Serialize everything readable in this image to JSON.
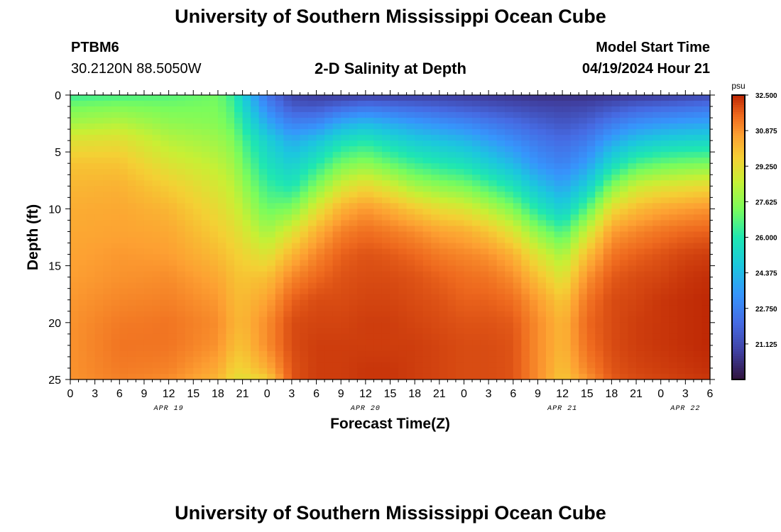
{
  "page": {
    "title_top": "University of Southern Mississippi Ocean Cube",
    "title_bottom": "University of Southern Mississippi Ocean Cube",
    "station_id": "PTBM6",
    "station_coords": "30.2120N  88.5050W",
    "plot_title": "2-D Salinity at Depth",
    "model_label": "Model Start Time",
    "model_time": "04/19/2024 Hour 21"
  },
  "chart_data": {
    "type": "heatmap",
    "title": "2-D Salinity at Depth",
    "xlabel": "Forecast Time(Z)",
    "ylabel": "Depth (ft)",
    "x_range_hours": [
      0,
      78
    ],
    "y_range_ft": [
      0,
      25
    ],
    "x_tick_hours": [
      0,
      3,
      6,
      9,
      12,
      15,
      18,
      21,
      24,
      27,
      30,
      33,
      36,
      39,
      42,
      45,
      48,
      51,
      54,
      57,
      60,
      63,
      66,
      69,
      72,
      75,
      78
    ],
    "x_tick_labels": [
      "0",
      "3",
      "6",
      "9",
      "12",
      "15",
      "18",
      "21",
      "0",
      "3",
      "6",
      "9",
      "12",
      "15",
      "18",
      "21",
      "0",
      "3",
      "6",
      "9",
      "12",
      "15",
      "18",
      "21",
      "0",
      "3",
      "6"
    ],
    "y_ticks": [
      0,
      5,
      10,
      15,
      20,
      25
    ],
    "date_labels": [
      {
        "text": "APR 19",
        "hour": 12
      },
      {
        "text": "APR 20",
        "hour": 36
      },
      {
        "text": "APR 21",
        "hour": 60
      },
      {
        "text": "APR 22",
        "hour": 75
      }
    ],
    "colorbar": {
      "unit": "psu",
      "min": 19.5,
      "max": 32.5,
      "tick_values": [
        32.5,
        30.875,
        29.25,
        27.625,
        26.0,
        24.375,
        22.75,
        21.125
      ],
      "tick_labels": [
        "32.500",
        "30.875",
        "29.250",
        "27.625",
        "26.000",
        "24.375",
        "22.750",
        "21.125"
      ]
    },
    "profiles": {
      "hours": [
        0,
        6,
        12,
        18,
        20,
        21,
        24,
        27,
        30,
        33,
        36,
        39,
        42,
        45,
        48,
        51,
        54,
        57,
        60,
        63,
        66,
        69,
        72,
        75,
        78
      ],
      "depth_knots_ft": [
        0,
        1,
        2.5,
        4,
        6,
        8,
        10,
        12,
        14,
        16,
        18,
        20,
        22,
        24,
        25
      ],
      "salinity_psu": [
        [
          26.4,
          27.2,
          28.0,
          29.1,
          29.9,
          30.2,
          30.4,
          30.5,
          30.6,
          30.7,
          30.8,
          30.9,
          30.9,
          30.9,
          30.9
        ],
        [
          26.6,
          27.4,
          28.3,
          29.2,
          29.9,
          30.3,
          30.5,
          30.6,
          30.8,
          30.9,
          31.1,
          31.3,
          31.4,
          31.3,
          31.2
        ],
        [
          26.8,
          27.2,
          27.7,
          28.3,
          29.0,
          29.7,
          30.2,
          30.5,
          30.7,
          31.0,
          31.2,
          31.4,
          31.4,
          31.2,
          31.0
        ],
        [
          27.2,
          27.3,
          27.5,
          27.9,
          28.4,
          28.9,
          29.3,
          29.7,
          30.1,
          30.5,
          30.8,
          31.0,
          30.9,
          30.5,
          30.2
        ],
        [
          26.2,
          26.5,
          26.9,
          27.4,
          27.9,
          28.4,
          28.8,
          29.3,
          29.7,
          30.0,
          30.2,
          30.3,
          30.1,
          29.6,
          29.3
        ],
        [
          25.0,
          25.4,
          26.0,
          26.6,
          27.2,
          27.8,
          28.4,
          29.0,
          29.5,
          29.9,
          30.1,
          30.2,
          30.0,
          29.6,
          29.2
        ],
        [
          22.4,
          23.0,
          24.0,
          25.1,
          25.7,
          26.4,
          27.1,
          28.0,
          29.0,
          30.0,
          30.6,
          31.0,
          31.0,
          30.4,
          29.6
        ],
        [
          21.0,
          21.6,
          22.8,
          24.0,
          25.0,
          25.9,
          27.4,
          29.0,
          30.2,
          31.1,
          31.7,
          32.0,
          32.0,
          31.9,
          31.9
        ],
        [
          20.7,
          21.5,
          23.0,
          24.6,
          26.0,
          27.4,
          29.0,
          30.3,
          31.1,
          31.6,
          32.0,
          32.1,
          32.2,
          32.2,
          32.2
        ],
        [
          20.7,
          22.0,
          24.0,
          25.6,
          27.2,
          28.8,
          30.3,
          31.2,
          31.7,
          31.9,
          32.0,
          32.1,
          32.2,
          32.2,
          32.2
        ],
        [
          20.8,
          22.4,
          24.4,
          26.0,
          27.6,
          29.4,
          30.8,
          31.5,
          31.9,
          32.0,
          32.1,
          32.2,
          32.2,
          32.3,
          32.3
        ],
        [
          20.8,
          22.2,
          24.0,
          25.4,
          27.0,
          28.8,
          30.4,
          31.3,
          31.8,
          32.0,
          32.1,
          32.2,
          32.2,
          32.3,
          32.3
        ],
        [
          20.8,
          22.0,
          23.6,
          24.9,
          26.4,
          28.0,
          29.8,
          31.0,
          31.6,
          31.9,
          32.0,
          32.1,
          32.2,
          32.2,
          32.2
        ],
        [
          20.8,
          21.8,
          23.3,
          24.6,
          26.0,
          27.6,
          29.3,
          30.6,
          31.3,
          31.7,
          31.9,
          32.0,
          32.1,
          32.1,
          32.1
        ],
        [
          20.7,
          21.6,
          23.0,
          24.3,
          25.7,
          27.3,
          29.0,
          30.4,
          31.1,
          31.5,
          31.7,
          31.9,
          32.0,
          32.0,
          32.0
        ],
        [
          20.6,
          21.4,
          22.6,
          23.7,
          25.0,
          26.6,
          28.3,
          29.9,
          30.9,
          31.4,
          31.7,
          31.9,
          32.0,
          32.0,
          32.0
        ],
        [
          20.5,
          21.2,
          22.2,
          23.1,
          24.3,
          25.8,
          27.4,
          29.0,
          30.3,
          31.0,
          31.5,
          31.8,
          31.9,
          31.9,
          31.9
        ],
        [
          20.4,
          21.0,
          21.8,
          22.5,
          23.3,
          24.6,
          26.0,
          27.6,
          29.0,
          30.0,
          30.7,
          31.0,
          31.0,
          31.0,
          31.0
        ],
        [
          20.4,
          20.9,
          21.5,
          22.1,
          22.8,
          23.8,
          25.0,
          26.6,
          28.0,
          29.0,
          29.8,
          30.2,
          30.2,
          30.0,
          29.8
        ],
        [
          20.4,
          21.0,
          21.8,
          22.6,
          23.6,
          25.0,
          26.8,
          28.6,
          30.0,
          30.9,
          31.4,
          31.6,
          31.5,
          31.2,
          30.8
        ],
        [
          20.5,
          21.4,
          22.6,
          23.8,
          25.4,
          27.4,
          29.3,
          30.7,
          31.4,
          31.8,
          32.0,
          32.0,
          32.0,
          31.9,
          31.8
        ],
        [
          20.6,
          21.8,
          23.2,
          24.6,
          26.6,
          28.6,
          30.1,
          31.1,
          31.7,
          32.0,
          32.1,
          32.2,
          32.2,
          32.1,
          32.0
        ],
        [
          20.7,
          22.0,
          23.5,
          25.0,
          27.0,
          29.0,
          30.5,
          31.4,
          31.9,
          32.1,
          32.3,
          32.3,
          32.3,
          32.2,
          32.1
        ],
        [
          20.9,
          22.2,
          23.7,
          25.2,
          27.2,
          29.2,
          30.7,
          31.6,
          32.1,
          32.3,
          32.4,
          32.4,
          32.4,
          32.3,
          32.2
        ],
        [
          21.1,
          22.4,
          23.8,
          25.3,
          27.3,
          29.4,
          30.9,
          31.7,
          32.2,
          32.4,
          32.5,
          32.5,
          32.5,
          32.4,
          32.3
        ]
      ]
    }
  }
}
